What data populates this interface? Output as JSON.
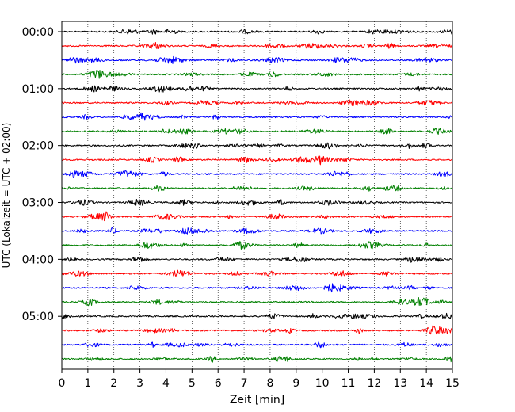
{
  "chart_data": {
    "type": "line",
    "title": "",
    "xlabel": "Zeit  [min]",
    "ylabel": "UTC (Lokalzeit = UTC + 02:00)",
    "xlim": [
      0,
      15
    ],
    "x_ticks": [
      "0",
      "1",
      "2",
      "3",
      "4",
      "5",
      "6",
      "7",
      "8",
      "9",
      "10",
      "11",
      "12",
      "13",
      "14",
      "15"
    ],
    "y_tick_labels": [
      "00:00",
      "01:00",
      "02:00",
      "03:00",
      "04:00",
      "05:00"
    ],
    "grid": "vertical-dotted",
    "trace_interval_minutes": 15,
    "trace_count": 24,
    "trace_colors": [
      "#000000",
      "#ff0000",
      "#0000ff",
      "#008000"
    ],
    "series": [
      {
        "start": "00:00"
      },
      {
        "start": "00:15"
      },
      {
        "start": "00:30"
      },
      {
        "start": "00:45"
      },
      {
        "start": "01:00"
      },
      {
        "start": "01:15"
      },
      {
        "start": "01:30"
      },
      {
        "start": "01:45"
      },
      {
        "start": "02:00"
      },
      {
        "start": "02:15"
      },
      {
        "start": "02:30"
      },
      {
        "start": "02:45"
      },
      {
        "start": "03:00"
      },
      {
        "start": "03:15"
      },
      {
        "start": "03:30"
      },
      {
        "start": "03:45"
      },
      {
        "start": "04:00"
      },
      {
        "start": "04:15"
      },
      {
        "start": "04:30"
      },
      {
        "start": "04:45"
      },
      {
        "start": "05:00"
      },
      {
        "start": "05:15"
      },
      {
        "start": "05:30"
      },
      {
        "start": "05:45"
      }
    ]
  }
}
